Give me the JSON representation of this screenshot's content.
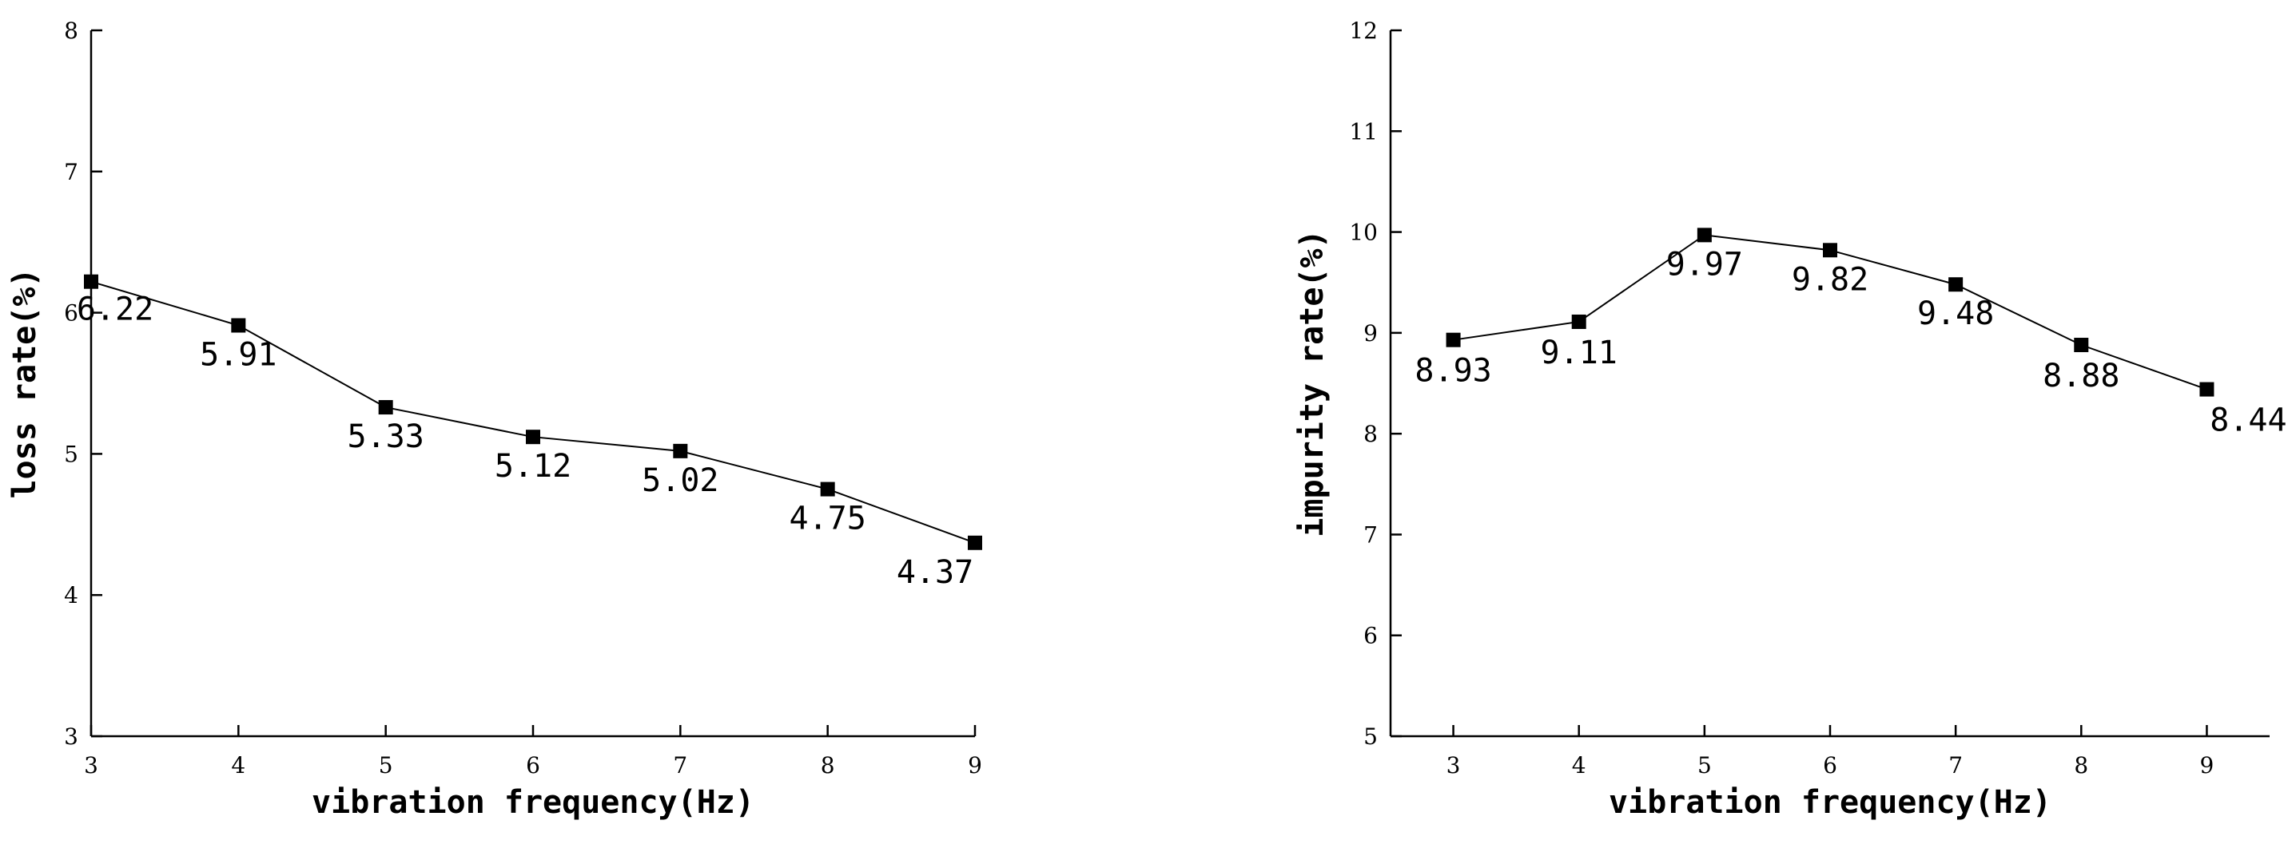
{
  "chart_data": [
    {
      "type": "line",
      "xlabel": "vibration frequency(Hz)",
      "ylabel": "loss rate(%)",
      "x": [
        3,
        4,
        5,
        6,
        7,
        8,
        9
      ],
      "xticks": [
        "3",
        "4",
        "5",
        "6",
        "7",
        "8",
        "9"
      ],
      "xlim": [
        3,
        9
      ],
      "yticks": [
        "3",
        "4",
        "5",
        "6",
        "7",
        "8"
      ],
      "ylim": [
        3,
        8
      ],
      "series": [
        {
          "values": [
            6.22,
            5.91,
            5.33,
            5.12,
            5.02,
            4.75,
            4.37
          ],
          "labels": [
            "6.22",
            "5.91",
            "5.33",
            "5.12",
            "5.02",
            "4.75",
            "4.37"
          ],
          "marker": "square"
        }
      ],
      "grid": false
    },
    {
      "type": "line",
      "xlabel": "vibration frequency(Hz)",
      "ylabel": "impurity rate(%)",
      "x": [
        3,
        4,
        5,
        6,
        7,
        8,
        9
      ],
      "xticks": [
        "3",
        "4",
        "5",
        "6",
        "7",
        "8",
        "9"
      ],
      "xlim": [
        2.5,
        9.5
      ],
      "yticks": [
        "5",
        "6",
        "7",
        "8",
        "9",
        "10",
        "11",
        "12"
      ],
      "ylim": [
        5,
        12
      ],
      "series": [
        {
          "values": [
            8.93,
            9.11,
            9.97,
            9.82,
            9.48,
            8.88,
            8.44
          ],
          "labels": [
            "8.93",
            "9.11",
            "9.97",
            "9.82",
            "9.48",
            "8.88",
            "8.44"
          ],
          "marker": "square"
        }
      ],
      "grid": false
    }
  ]
}
